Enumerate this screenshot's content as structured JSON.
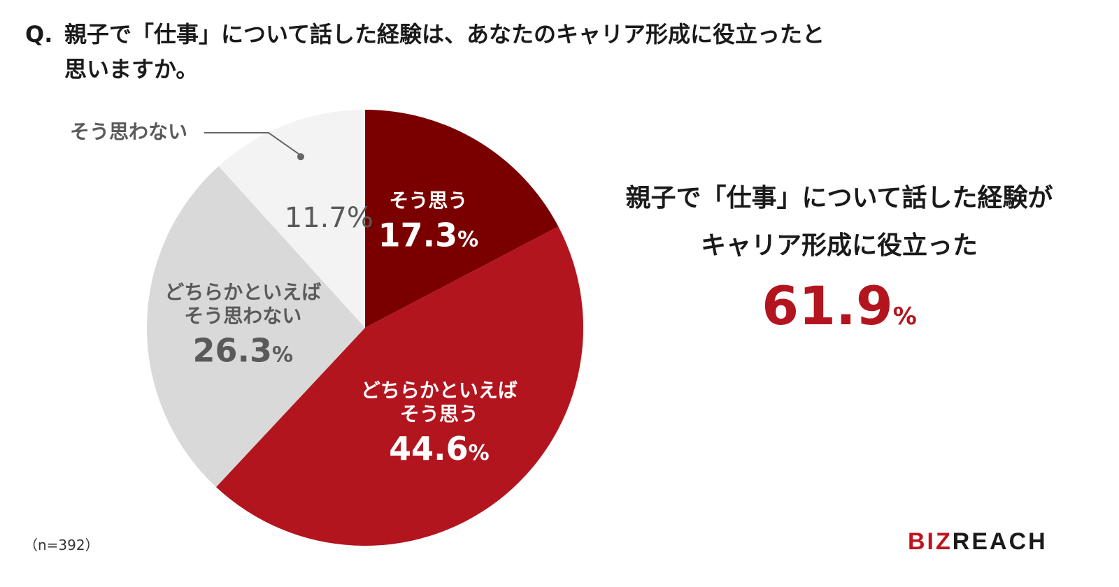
{
  "question": {
    "prefix": "Q.",
    "line1": "親子で「仕事」について話した経験は、あなたのキャリア形成に役立ったと",
    "line2": "思いますか。"
  },
  "chart_data": {
    "type": "pie",
    "start_angle_deg": 0,
    "direction": "clockwise",
    "slices": [
      {
        "label_lines": [
          "そう思う"
        ],
        "value": 17.3,
        "color": "#7a0000",
        "text_color": "#ffffff"
      },
      {
        "label_lines": [
          "どちらかといえば",
          "そう思う"
        ],
        "value": 44.6,
        "color": "#b3151e",
        "text_color": "#ffffff"
      },
      {
        "label_lines": [
          "どちらかといえば",
          "そう思わない"
        ],
        "value": 26.3,
        "color": "#d9d9d9",
        "text_color": "#5a5a5a"
      },
      {
        "label_lines": [
          "そう思わない"
        ],
        "value": 11.7,
        "color": "#f3f3f3",
        "text_color": "#5a5a5a",
        "label_outside": true
      }
    ],
    "value_suffix": "%"
  },
  "summary": {
    "line1": "親子で「仕事」について話した経験が",
    "line2": "キャリア形成に役立った",
    "value": "61.9",
    "unit": "%"
  },
  "note": "（n=392）",
  "logo": {
    "accent": "BIZ",
    "rest": "REACH"
  }
}
